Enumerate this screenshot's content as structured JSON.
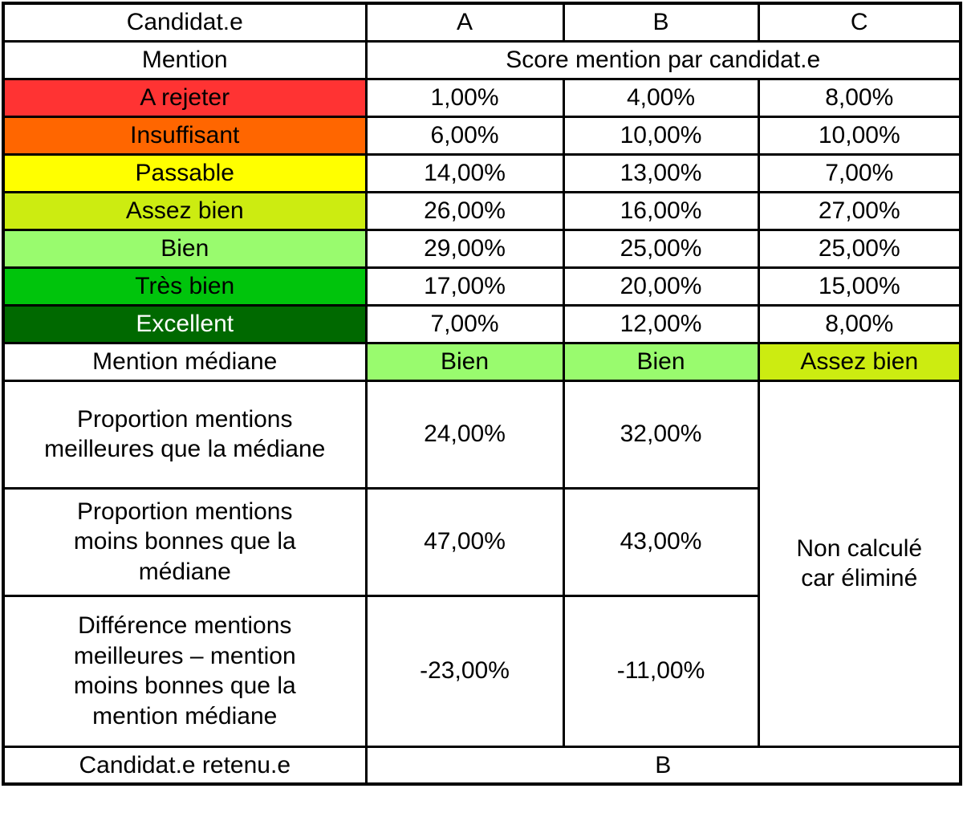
{
  "header": {
    "candidate_label": "Candidat.e",
    "candidates": [
      "A",
      "B",
      "C"
    ]
  },
  "subheader": {
    "mention_label": "Mention",
    "score_title": "Score mention par candidat.e"
  },
  "mentions": [
    {
      "label": "A rejeter",
      "bg": "#FF3333",
      "fg": "#000000",
      "values": [
        "1,00%",
        "4,00%",
        "8,00%"
      ]
    },
    {
      "label": "Insuffisant",
      "bg": "#FF6600",
      "fg": "#000000",
      "values": [
        "6,00%",
        "10,00%",
        "10,00%"
      ]
    },
    {
      "label": "Passable",
      "bg": "#FFFF00",
      "fg": "#000000",
      "values": [
        "14,00%",
        "13,00%",
        "7,00%"
      ]
    },
    {
      "label": "Assez bien",
      "bg": "#CCEC11",
      "fg": "#000000",
      "values": [
        "26,00%",
        "16,00%",
        "27,00%"
      ]
    },
    {
      "label": "Bien",
      "bg": "#99FB6E",
      "fg": "#000000",
      "values": [
        "29,00%",
        "25,00%",
        "25,00%"
      ]
    },
    {
      "label": "Très bien",
      "bg": "#00C40C",
      "fg": "#000000",
      "values": [
        "17,00%",
        "20,00%",
        "15,00%"
      ]
    },
    {
      "label": "Excellent",
      "bg": "#006900",
      "fg": "#FFFFFF",
      "values": [
        "7,00%",
        "12,00%",
        "8,00%"
      ]
    }
  ],
  "median": {
    "label": "Mention médiane",
    "cells": [
      {
        "text": "Bien",
        "bg": "#99FB6E"
      },
      {
        "text": "Bien",
        "bg": "#99FB6E"
      },
      {
        "text": "Assez bien",
        "bg": "#CCEC11"
      }
    ]
  },
  "stats": [
    {
      "label": "Proportion mentions\nmeilleures que la médiane",
      "values": [
        "24,00%",
        "32,00%"
      ]
    },
    {
      "label": "Proportion mentions\nmoins bonnes que la\nmédiane",
      "values": [
        "47,00%",
        "43,00%"
      ]
    },
    {
      "label": "Différence mentions\nmeilleures – mention\nmoins bonnes que la\nmention médiane",
      "values": [
        "-23,00%",
        "-11,00%"
      ]
    }
  ],
  "eliminated_note": "Non calculé\ncar éliminé",
  "winner": {
    "label": "Candidat.e retenu.e",
    "value": "B"
  },
  "chart_data": {
    "type": "table",
    "title": "Score mention par candidat.e",
    "categories": [
      "A",
      "B",
      "C"
    ],
    "mentions": [
      "A rejeter",
      "Insuffisant",
      "Passable",
      "Assez bien",
      "Bien",
      "Très bien",
      "Excellent"
    ],
    "mention_colors": [
      "#FF3333",
      "#FF6600",
      "#FFFF00",
      "#CCEC11",
      "#99FB6E",
      "#00C40C",
      "#006900"
    ],
    "series": [
      {
        "name": "A",
        "values_pct": [
          1,
          6,
          14,
          26,
          29,
          17,
          7
        ],
        "median": "Bien",
        "better_than_median_pct": 24,
        "worse_than_median_pct": 47,
        "difference_pct": -23
      },
      {
        "name": "B",
        "values_pct": [
          4,
          10,
          13,
          16,
          25,
          20,
          12
        ],
        "median": "Bien",
        "better_than_median_pct": 32,
        "worse_than_median_pct": 43,
        "difference_pct": -11
      },
      {
        "name": "C",
        "values_pct": [
          8,
          10,
          7,
          27,
          25,
          15,
          8
        ],
        "median": "Assez bien",
        "note": "Non calculé car éliminé"
      }
    ],
    "winner": "B"
  }
}
